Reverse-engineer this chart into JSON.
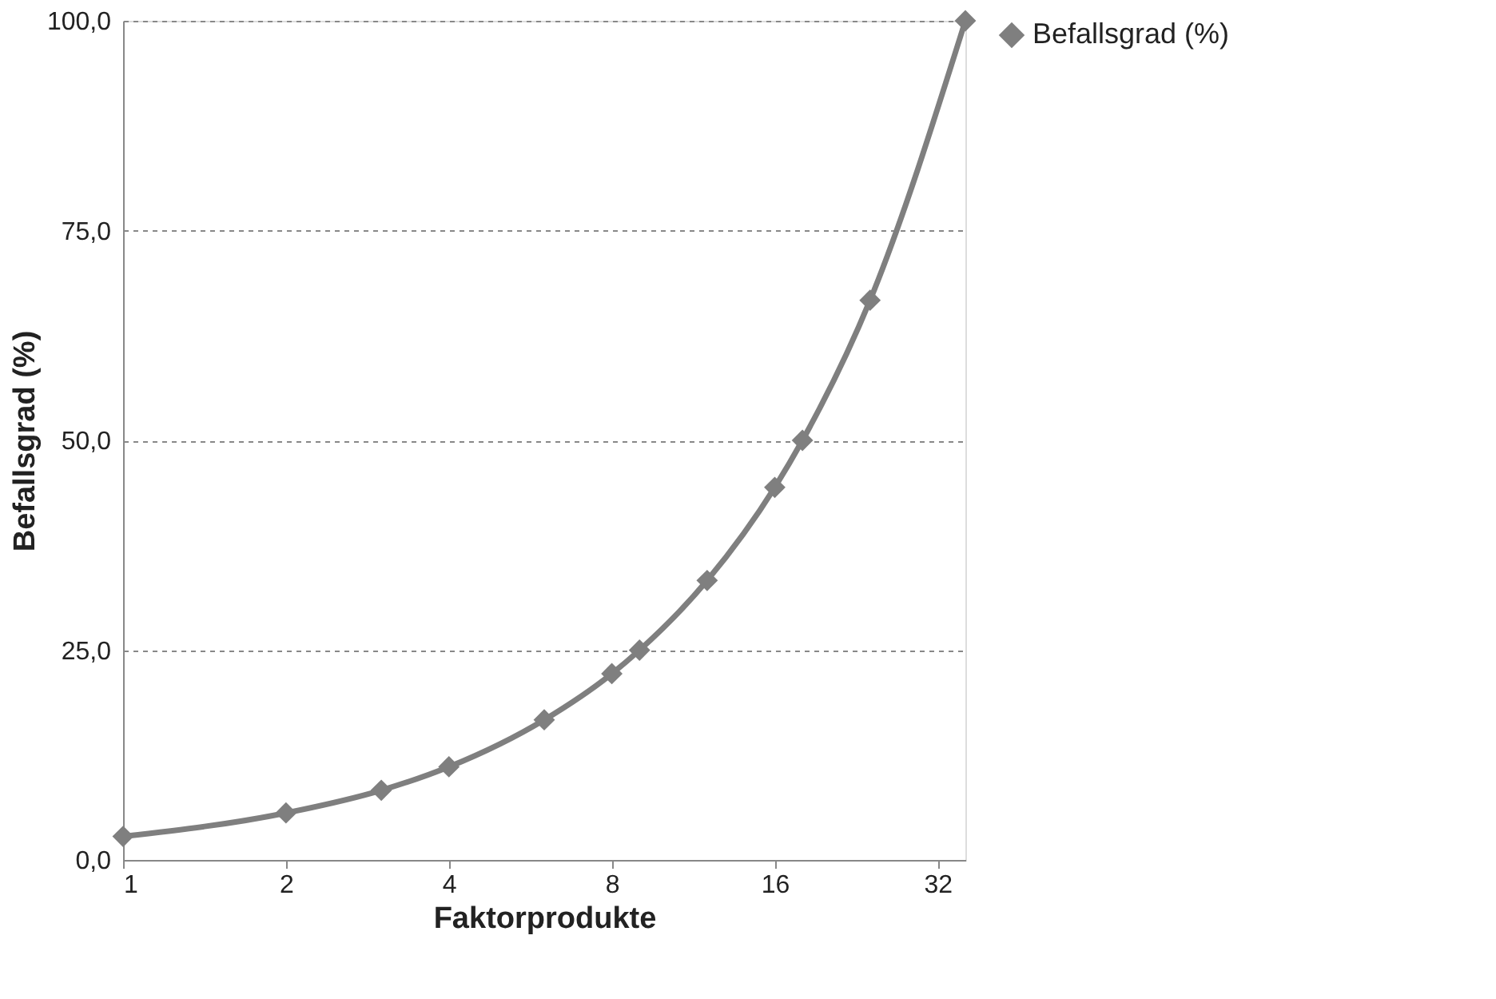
{
  "chart_data": {
    "type": "line",
    "xlabel": "Faktorprodukte",
    "ylabel": "Befallsgrad (%)",
    "x": [
      1,
      2,
      3,
      4,
      6,
      8,
      9,
      12,
      16,
      18,
      24,
      36
    ],
    "series": [
      {
        "name": "Befallsgrad (%)",
        "color": "#7f7f7f",
        "values": [
          2.8,
          5.6,
          8.3,
          11.1,
          16.7,
          22.2,
          25,
          33.3,
          44.4,
          50,
          66.7,
          100
        ]
      }
    ],
    "log": "x",
    "xlim": [
      1,
      36
    ],
    "xticks": [
      1,
      2,
      4,
      8,
      16,
      32
    ],
    "ylim": [
      0,
      100
    ],
    "yticks": [
      {
        "value": 0,
        "label": "0,0"
      },
      {
        "value": 25,
        "label": "25,0"
      },
      {
        "value": 50,
        "label": "50,0"
      },
      {
        "value": 75,
        "label": "75,0"
      },
      {
        "value": 100,
        "label": "100,0"
      }
    ],
    "grid": "y",
    "legend": "right",
    "marker": "diamond",
    "line_style": "solid"
  }
}
